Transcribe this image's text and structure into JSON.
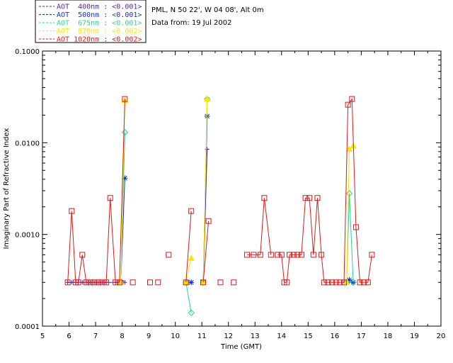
{
  "colors": {
    "AOT 400nm": "#5a1ea0",
    "AOT 500nm": "#1030e0",
    "AOT 675nm": "#22d890",
    "AOT 870nm": "#ffe400",
    "AOT 1020nm": "#e01818"
  },
  "info": {
    "location": "PML, N 50 22', W 04 08', Alt 0m",
    "date": "Data from: 19 Jul 2002"
  },
  "chart_data": {
    "type": "line",
    "title": "",
    "xlabel": "Time (GMT)",
    "ylabel": "Imaginary Part of Refractive Index",
    "xlim": [
      5,
      20
    ],
    "ylim": [
      0.0001,
      0.1
    ],
    "yscale": "log",
    "xticks": [
      "5",
      "6",
      "7",
      "8",
      "9",
      "10",
      "11",
      "12",
      "13",
      "14",
      "15",
      "16",
      "17",
      "18",
      "19",
      "20"
    ],
    "yticks": [
      "0.0001",
      "0.0010",
      "0.0100",
      "0.1000"
    ],
    "legend_position": "top-left outside",
    "series": [
      {
        "name": "AOT  400nm : <0.001>",
        "marker": "plus",
        "segments": [
          [
            [
              5.95,
              0.0003
            ],
            [
              6.1,
              0.0003
            ],
            [
              6.25,
              0.0003
            ],
            [
              6.35,
              0.0003
            ],
            [
              6.5,
              0.0003
            ],
            [
              6.65,
              0.0003
            ],
            [
              6.8,
              0.0003
            ],
            [
              6.95,
              0.0003
            ],
            [
              7.1,
              0.0003
            ],
            [
              7.25,
              0.0003
            ],
            [
              7.4,
              0.0003
            ],
            [
              7.75,
              0.0003
            ],
            [
              7.9,
              0.0003
            ],
            [
              8.05,
              0.0003
            ],
            [
              8.1,
              0.0003
            ]
          ],
          [
            [
              10.45,
              0.0003
            ],
            [
              10.6,
              0.0003
            ]
          ],
          [
            [
              11.05,
              0.0003
            ],
            [
              11.2,
              0.0085
            ]
          ],
          [
            [
              16.45,
              0.0003
            ],
            [
              16.55,
              0.0003
            ],
            [
              16.65,
              0.0003
            ]
          ]
        ]
      },
      {
        "name": "AOT  500nm : <0.001>",
        "marker": "asterisk",
        "segments": [
          [
            [
              7.95,
              0.0003
            ],
            [
              8.1,
              0.0041
            ]
          ],
          [
            [
              10.45,
              0.0003
            ],
            [
              10.6,
              0.0003
            ]
          ],
          [
            [
              11.05,
              0.0003
            ],
            [
              11.2,
              0.0195
            ]
          ],
          [
            [
              16.45,
              0.0003
            ],
            [
              16.55,
              0.00032
            ],
            [
              16.7,
              0.0003
            ]
          ]
        ]
      },
      {
        "name": "AOT  675nm : <0.001>",
        "marker": "diamond",
        "segments": [
          [
            [
              7.95,
              0.0003
            ],
            [
              8.1,
              0.013
            ]
          ],
          [
            [
              10.4,
              0.0003
            ],
            [
              10.6,
              0.00014
            ]
          ],
          [
            [
              11.05,
              0.0003
            ],
            [
              11.2,
              0.03
            ]
          ],
          [
            [
              16.45,
              0.0003
            ],
            [
              16.55,
              0.0028
            ],
            [
              16.7,
              0.0003
            ]
          ]
        ]
      },
      {
        "name": "AOT  870nm : <0.002>",
        "marker": "triangle",
        "segments": [
          [
            [
              7.95,
              0.0003
            ],
            [
              8.1,
              0.029
            ]
          ],
          [
            [
              10.4,
              0.0003
            ],
            [
              10.6,
              0.00055
            ]
          ],
          [
            [
              11.05,
              0.0003
            ],
            [
              11.2,
              0.03
            ]
          ],
          [
            [
              16.45,
              0.0003
            ],
            [
              16.55,
              0.0085
            ],
            [
              16.7,
              0.0092
            ]
          ]
        ]
      },
      {
        "name": "AOT 1020nm : <0.002>",
        "marker": "square",
        "segments": [
          [
            [
              5.95,
              0.0003
            ],
            [
              6.1,
              0.0018
            ],
            [
              6.25,
              0.0003
            ],
            [
              6.35,
              0.0003
            ],
            [
              6.5,
              0.0006
            ],
            [
              6.65,
              0.0003
            ],
            [
              6.8,
              0.0003
            ],
            [
              6.95,
              0.0003
            ],
            [
              7.1,
              0.0003
            ],
            [
              7.25,
              0.0003
            ],
            [
              7.4,
              0.0003
            ],
            [
              7.55,
              0.0025
            ],
            [
              7.75,
              0.0003
            ],
            [
              7.9,
              0.0003
            ],
            [
              8.1,
              0.03
            ]
          ],
          [
            [
              8.4,
              0.0003
            ]
          ],
          [
            [
              9.05,
              0.0003
            ]
          ],
          [
            [
              9.35,
              0.0003
            ]
          ],
          [
            [
              9.75,
              0.0006
            ]
          ],
          [
            [
              10.4,
              0.0003
            ],
            [
              10.6,
              0.0018
            ]
          ],
          [
            [
              11.05,
              0.0003
            ],
            [
              11.25,
              0.0014
            ]
          ],
          [
            [
              11.7,
              0.0003
            ]
          ],
          [
            [
              12.2,
              0.0003
            ]
          ],
          [
            [
              12.7,
              0.0006
            ],
            [
              12.95,
              0.0006
            ],
            [
              13.2,
              0.0006
            ],
            [
              13.35,
              0.0025
            ],
            [
              13.6,
              0.0006
            ]
          ],
          [
            [
              13.85,
              0.0006
            ],
            [
              14.0,
              0.0006
            ],
            [
              14.1,
              0.0003
            ],
            [
              14.2,
              0.0003
            ],
            [
              14.3,
              0.0006
            ],
            [
              14.45,
              0.0006
            ],
            [
              14.6,
              0.0006
            ],
            [
              14.75,
              0.0006
            ],
            [
              14.9,
              0.0025
            ],
            [
              15.05,
              0.0025
            ],
            [
              15.2,
              0.0006
            ],
            [
              15.35,
              0.0025
            ],
            [
              15.5,
              0.0006
            ],
            [
              15.6,
              0.0003
            ],
            [
              15.75,
              0.0003
            ],
            [
              15.9,
              0.0003
            ],
            [
              16.05,
              0.0003
            ],
            [
              16.2,
              0.0003
            ],
            [
              16.35,
              0.0003
            ],
            [
              16.5,
              0.026
            ],
            [
              16.65,
              0.03
            ],
            [
              16.8,
              0.0012
            ],
            [
              16.95,
              0.0003
            ],
            [
              17.1,
              0.0003
            ],
            [
              17.25,
              0.0003
            ],
            [
              17.4,
              0.0006
            ]
          ]
        ]
      }
    ]
  }
}
